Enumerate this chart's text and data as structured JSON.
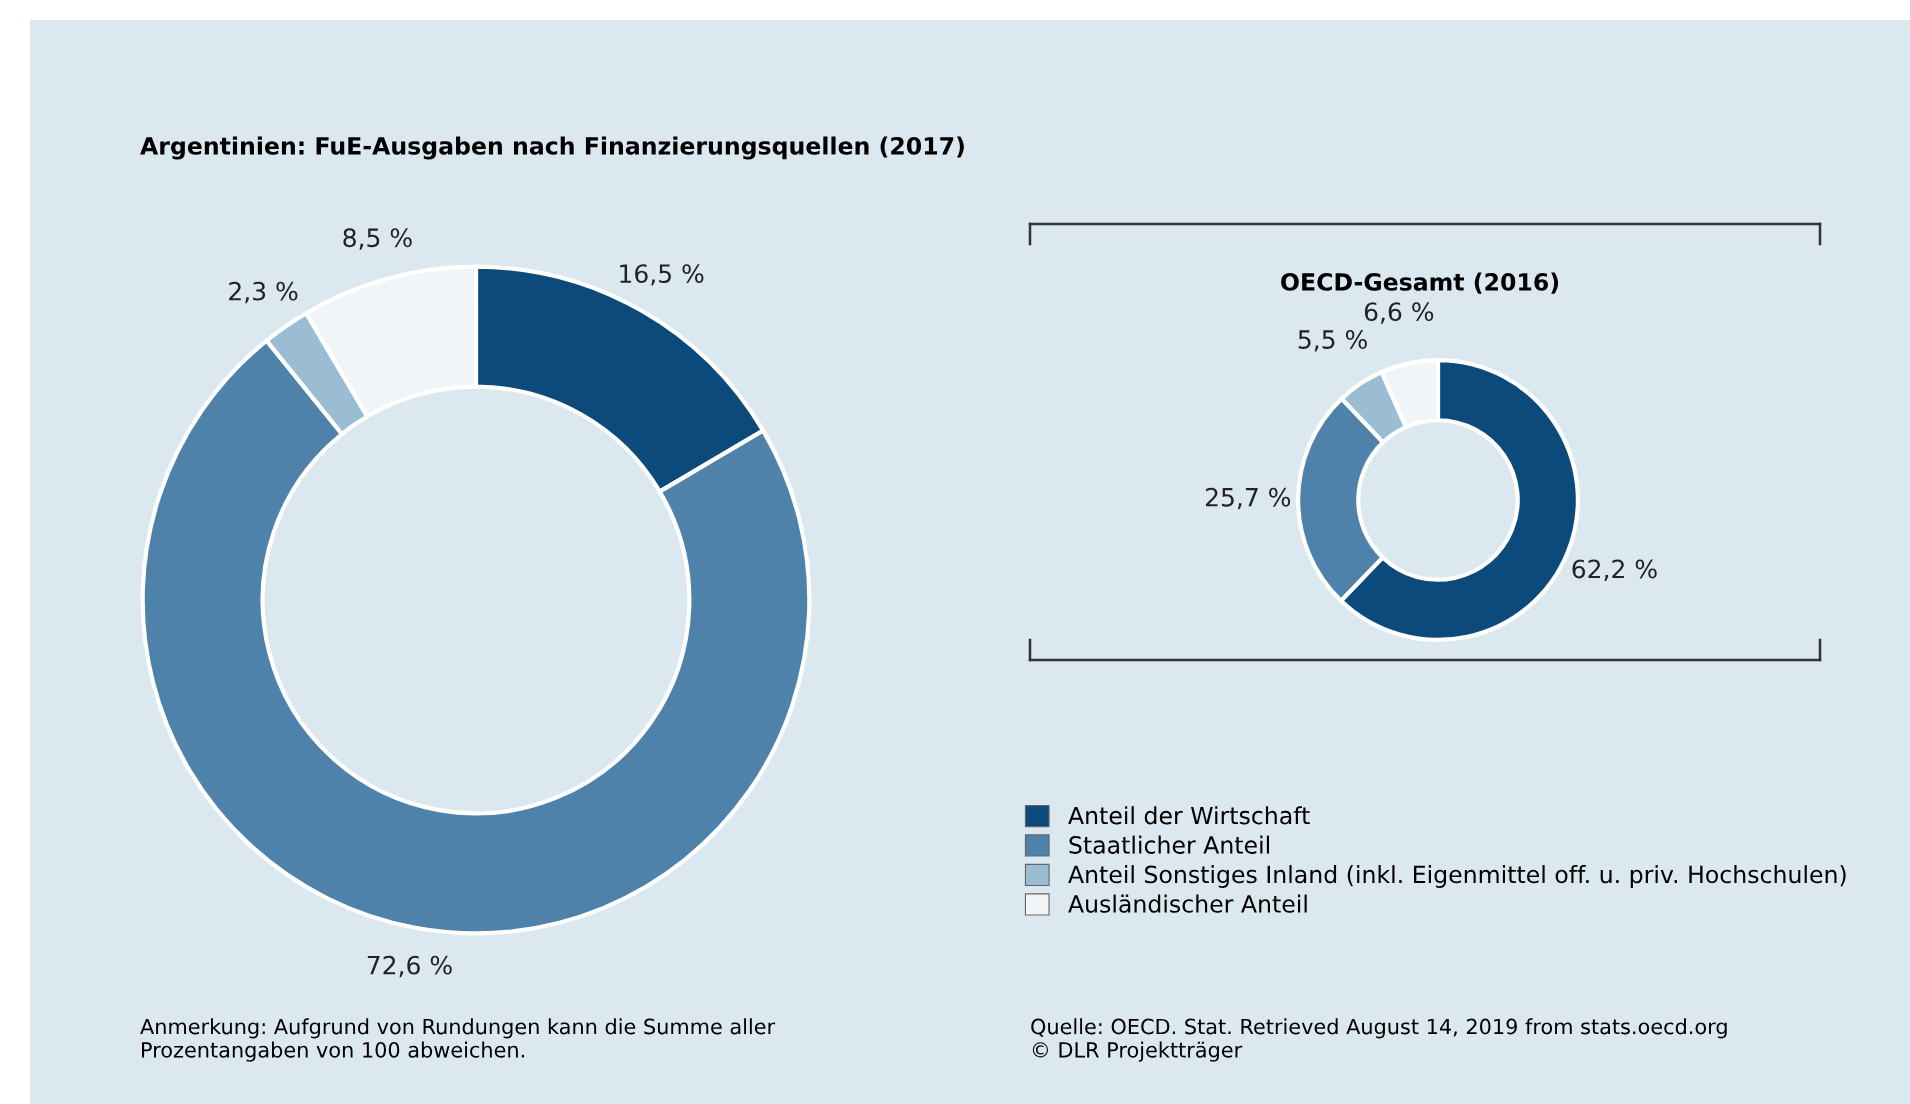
{
  "chart_data": [
    {
      "type": "donut",
      "title": "Argentinien: FuE-Ausgaben nach Finanzierungsquellen (2017)",
      "categories": [
        "Anteil der Wirtschaft",
        "Staatlicher Anteil",
        "Anteil Sonstiges Inland (inkl. Eigenmittel off. u. priv. Hochschulen)",
        "Ausländischer Anteil"
      ],
      "values": [
        16.5,
        72.6,
        2.3,
        8.5
      ],
      "value_labels": [
        "16,5 %",
        "72,6 %",
        "2,3 %",
        "8,5 %"
      ],
      "colors": [
        "#0c4a7c",
        "#4e82aa",
        "#9bbdd4",
        "#f1f5f8"
      ],
      "legend": "bottom right",
      "annotations": [
        "Anmerkung: Aufgrund von Rundungen kann die Summe aller\nProzentangaben von 100 abweichen."
      ]
    },
    {
      "type": "donut",
      "title": "OECD-Gesamt (2016)",
      "values": [
        62.2,
        25.7,
        5.5,
        6.6
      ],
      "value_labels": [
        "62,2 %",
        "25,7 %",
        "5,5 %",
        "6,6 %"
      ],
      "colors": [
        "#0c4a7c",
        "#4e82aa",
        "#9bbdd4",
        "#f1f5f8"
      ],
      "annotations": [
        "Quelle: OECD. Stat. Retrieved August 14, 2019 from stats.oecd.org\n© DLR Projektträger"
      ]
    }
  ]
}
